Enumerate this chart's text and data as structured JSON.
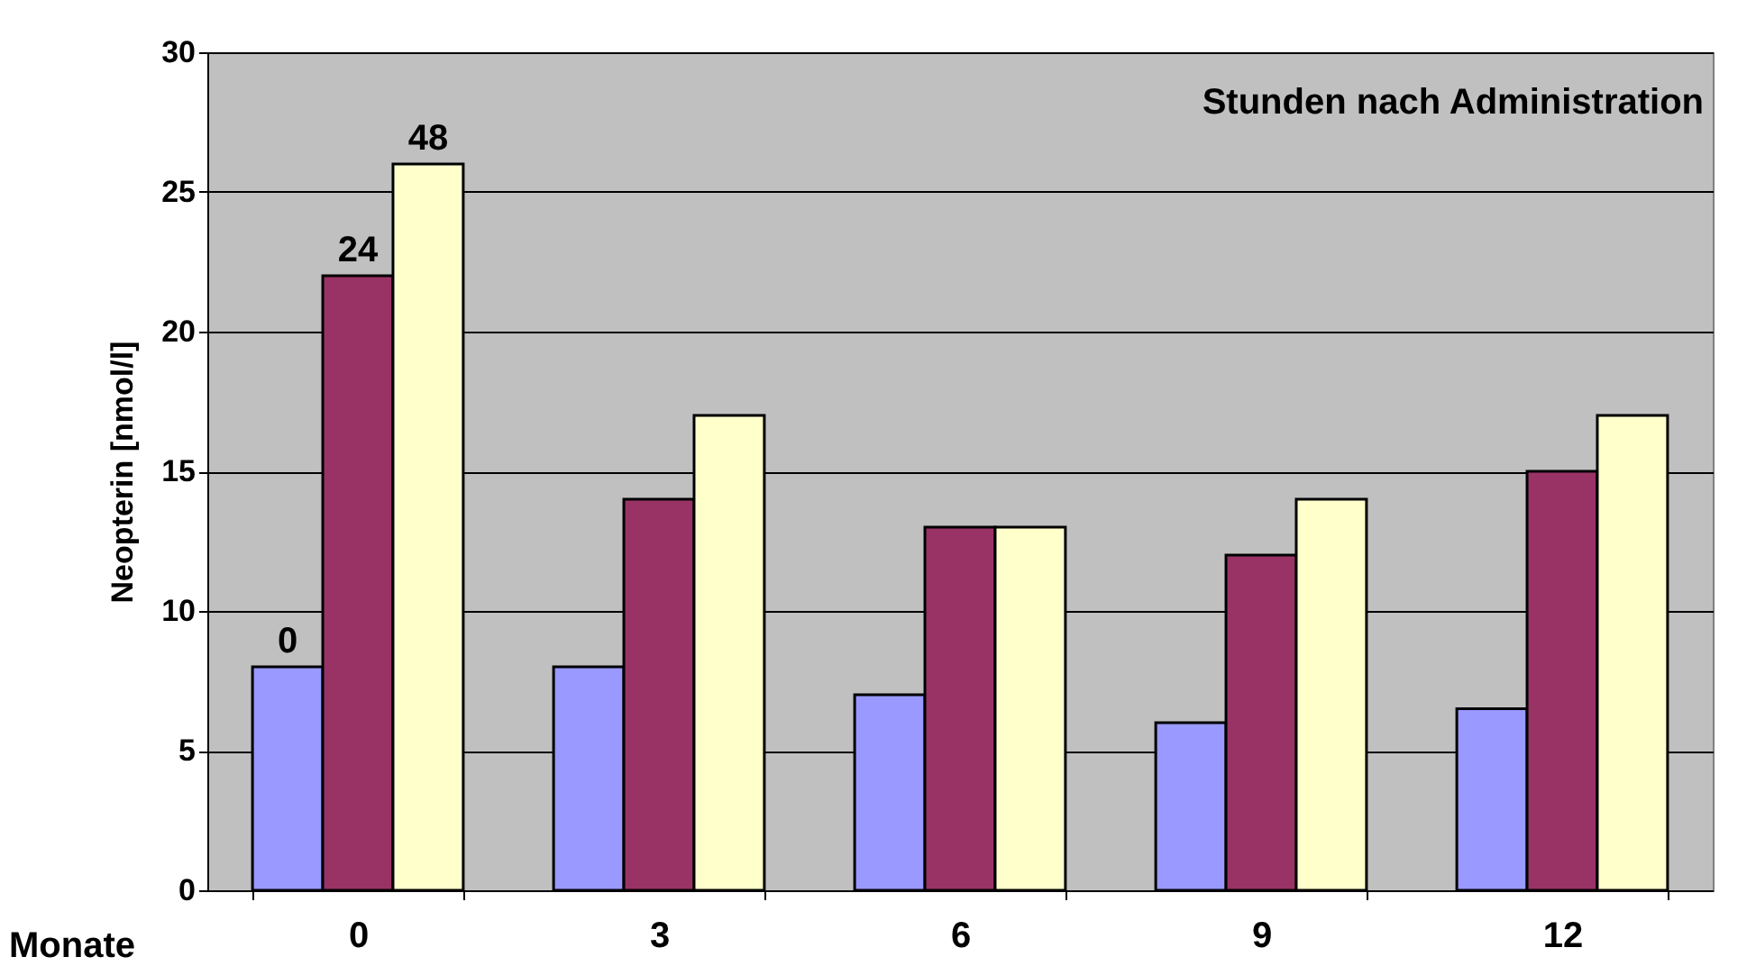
{
  "chart_data": {
    "type": "bar",
    "ylabel": "Neopterin [nmol/l]",
    "xlabel": "Monate",
    "categories": [
      "0",
      "3",
      "6",
      "9",
      "12"
    ],
    "series": [
      {
        "name": "0",
        "color": "#9999ff",
        "values": [
          8,
          8,
          7,
          6,
          6.5
        ]
      },
      {
        "name": "24",
        "color": "#993366",
        "values": [
          22,
          14,
          13,
          12,
          15
        ]
      },
      {
        "name": "48",
        "color": "#ffffcc",
        "values": [
          26,
          17,
          13,
          14,
          17
        ]
      }
    ],
    "annotations": [
      "Stunden nach Administration"
    ],
    "ylim": [
      0,
      30
    ],
    "yticks": [
      0,
      5,
      10,
      15,
      20,
      25,
      30
    ],
    "grid": "y",
    "legend": false
  }
}
